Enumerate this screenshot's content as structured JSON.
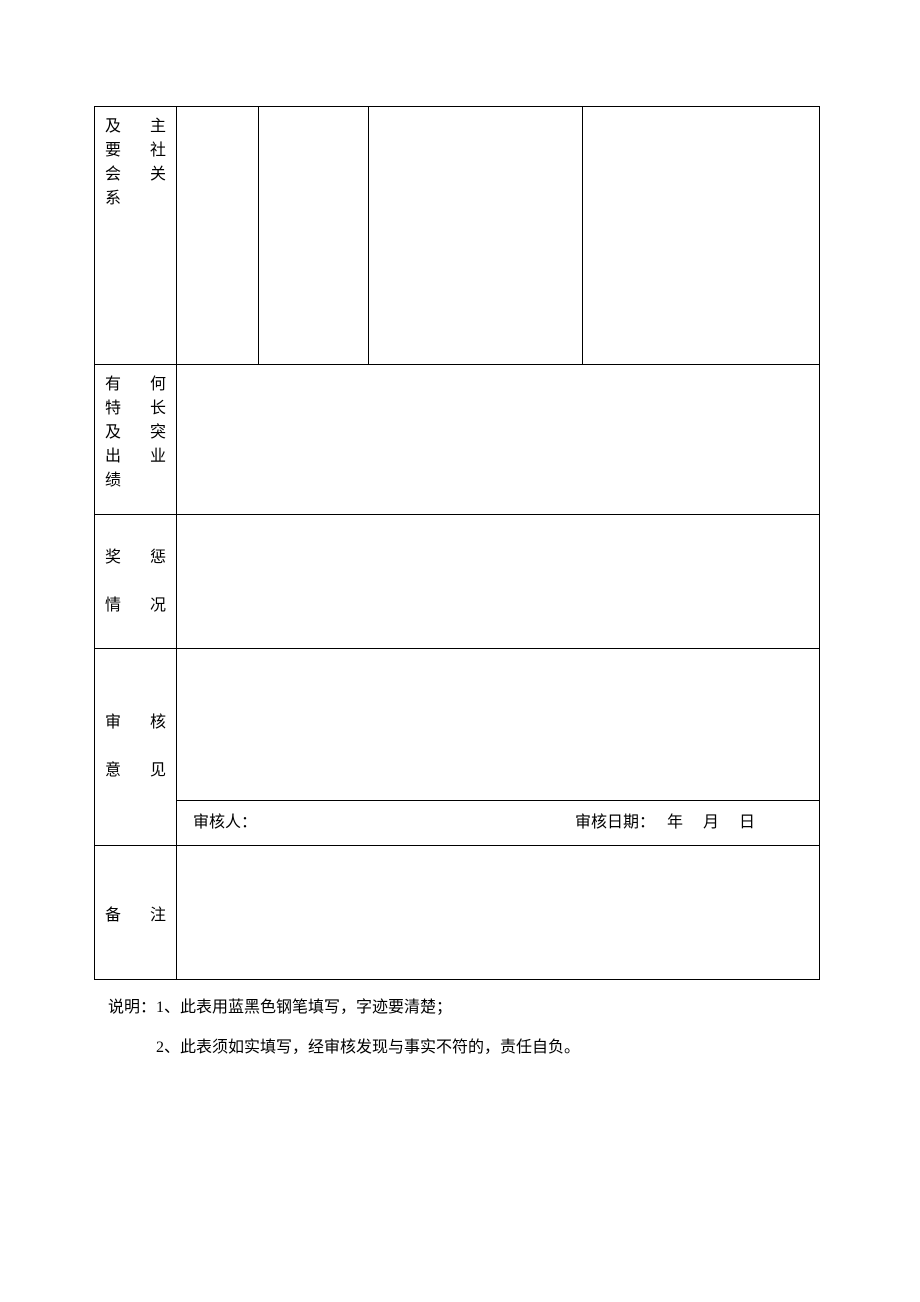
{
  "rows": {
    "socialRelations": {
      "labelLeft": [
        "及",
        "要",
        "会",
        "系"
      ],
      "labelRight": [
        "主",
        "社",
        "关"
      ]
    },
    "talents": {
      "labelLeft": [
        "有",
        "特",
        "及",
        "出",
        "绩"
      ],
      "labelRight": [
        "何",
        "长",
        "突",
        "业"
      ]
    },
    "rewards": {
      "labelLine1Left": "奖",
      "labelLine1Right": "惩",
      "labelLine2Left": "情",
      "labelLine2Right": "况"
    },
    "review": {
      "labelLine1Left": "审",
      "labelLine1Right": "核",
      "labelLine2Left": "意",
      "labelLine2Right": "见",
      "reviewerLabel": "审核人：",
      "reviewDateLabel": "审核日期：",
      "year": "年",
      "month": "月",
      "day": "日"
    },
    "remarks": {
      "labelLeft": "备",
      "labelRight": "注"
    }
  },
  "notes": {
    "prefix": "说明：",
    "item1": "1、此表用蓝黑色钢笔填写，字迹要清楚；",
    "item2": "2、此表须如实填写，经审核发现与事实不符的，责任自负。"
  },
  "styling": {
    "pageWidth": 920,
    "pageHeight": 1302,
    "tableWidth": 726,
    "tableTop": 106,
    "tableLeft": 94,
    "borderColor": "#000000",
    "backgroundColor": "#ffffff",
    "textColor": "#000000",
    "fontSize": 16,
    "labelCellWidth": 82,
    "rowHeights": {
      "socialRelations": 258,
      "talents": 150,
      "rewards": 134,
      "reviewUpper": 152,
      "reviewLower": 44,
      "remarks": 134
    },
    "subColumnWidths": [
      82,
      110,
      214,
      238
    ]
  }
}
